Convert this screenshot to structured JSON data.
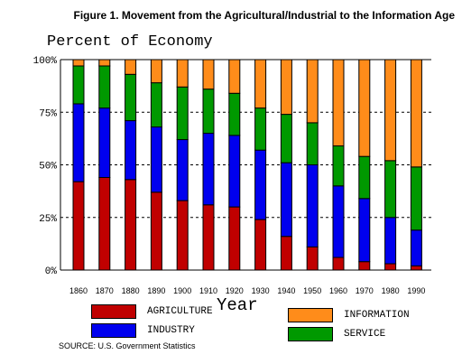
{
  "chart_data": {
    "type": "bar",
    "stacked": true,
    "title": "Figure 1. Movement from the Agricultural/Industrial to the Information Age",
    "ylabel": "Percent of Economy",
    "xlabel": "Year",
    "ylim": [
      0,
      100
    ],
    "yticks": [
      "0%",
      "25%",
      "50%",
      "75%",
      "100%"
    ],
    "ytick_values": [
      0,
      25,
      50,
      75,
      100
    ],
    "grid": true,
    "categories": [
      "1860",
      "1870",
      "1880",
      "1890",
      "1900",
      "1910",
      "1920",
      "1930",
      "1940",
      "1950",
      "1960",
      "1970",
      "1980",
      "1990"
    ],
    "series": [
      {
        "name": "AGRICULTURE",
        "color": "#c00000",
        "values": [
          42,
          44,
          43,
          37,
          33,
          31,
          30,
          24,
          16,
          11,
          6,
          4,
          3,
          2
        ]
      },
      {
        "name": "INDUSTRY",
        "color": "#0000ee",
        "values": [
          37,
          33,
          28,
          31,
          29,
          34,
          34,
          33,
          35,
          39,
          34,
          30,
          22,
          17
        ]
      },
      {
        "name": "SERVICE",
        "color": "#009900",
        "values": [
          18,
          20,
          22,
          21,
          25,
          21,
          20,
          20,
          23,
          20,
          19,
          20,
          27,
          30
        ]
      },
      {
        "name": "INFORMATION",
        "color": "#ff8c1a",
        "values": [
          3,
          3,
          7,
          11,
          13,
          14,
          16,
          23,
          26,
          30,
          41,
          46,
          48,
          51
        ]
      }
    ],
    "source": "SOURCE:  U.S. Government Statistics"
  }
}
